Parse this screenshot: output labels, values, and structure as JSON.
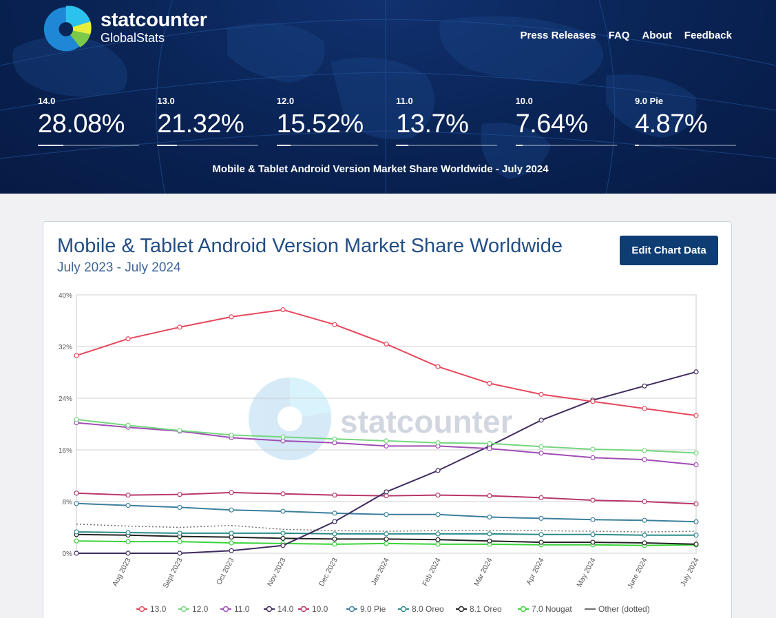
{
  "brand": {
    "name": "statcounter",
    "sub": "GlobalStats"
  },
  "nav": [
    "Press Releases",
    "FAQ",
    "About",
    "Feedback"
  ],
  "stats": [
    {
      "label": "14.0",
      "value": "28.08%",
      "share": 0.2808
    },
    {
      "label": "13.0",
      "value": "21.32%",
      "share": 0.2132
    },
    {
      "label": "12.0",
      "value": "15.52%",
      "share": 0.1552
    },
    {
      "label": "11.0",
      "value": "13.7%",
      "share": 0.137
    },
    {
      "label": "10.0",
      "value": "7.64%",
      "share": 0.0764
    },
    {
      "label": "9.0 Pie",
      "value": "4.87%",
      "share": 0.0487
    }
  ],
  "hero_title": "Mobile & Tablet Android Version Market Share Worldwide - July 2024",
  "card": {
    "title": "Mobile & Tablet Android Version Market Share Worldwide",
    "subtitle": "July 2023 - July 2024",
    "edit_button": "Edit Chart Data"
  },
  "watermark": "statcounter",
  "chart_data": {
    "type": "line",
    "title": "",
    "xlabel": "",
    "ylabel": "",
    "ylim": [
      0,
      40
    ],
    "yticks": [
      "0%",
      "8%",
      "16%",
      "24%",
      "32%",
      "40%"
    ],
    "ytick_values": [
      0,
      8,
      16,
      24,
      32,
      40
    ],
    "x": [
      "July 2023",
      "Aug 2023",
      "Sept 2023",
      "Oct 2023",
      "Nov 2023",
      "Dec 2023",
      "Jan 2024",
      "Feb 2024",
      "Mar 2024",
      "Apr 2024",
      "May 2024",
      "June 2024",
      "July 2024"
    ],
    "xtick_labels": [
      "Aug 2023",
      "Sept 2023",
      "Oct 2023",
      "Nov 2023",
      "Dec 2023",
      "Jan 2024",
      "Feb 2024",
      "Mar 2024",
      "Apr 2024",
      "May 2024",
      "June 2024",
      "July 2024"
    ],
    "grid": true,
    "legend_position": "bottom",
    "series": [
      {
        "name": "13.0",
        "color": "#e6475c",
        "values": [
          30.6,
          33.2,
          35.0,
          36.6,
          37.7,
          35.4,
          32.4,
          28.9,
          26.3,
          24.6,
          23.5,
          22.4,
          21.32
        ]
      },
      {
        "name": "12.0",
        "color": "#74d67f",
        "values": [
          20.7,
          19.8,
          19.0,
          18.3,
          18.0,
          17.7,
          17.4,
          17.1,
          17.0,
          16.5,
          16.1,
          15.9,
          15.52
        ]
      },
      {
        "name": "11.0",
        "color": "#a04cb5",
        "values": [
          20.2,
          19.5,
          18.9,
          17.9,
          17.4,
          17.1,
          16.6,
          16.6,
          16.2,
          15.5,
          14.8,
          14.5,
          13.7
        ]
      },
      {
        "name": "14.0",
        "color": "#3f2b5e",
        "values": [
          0.0,
          0.0,
          0.0,
          0.4,
          1.2,
          4.9,
          9.5,
          12.8,
          16.6,
          20.6,
          23.7,
          25.9,
          28.08
        ]
      },
      {
        "name": "10.0",
        "color": "#b8376a",
        "values": [
          9.3,
          9.0,
          9.1,
          9.4,
          9.2,
          9.0,
          8.9,
          9.0,
          8.9,
          8.6,
          8.2,
          8.0,
          7.64
        ]
      },
      {
        "name": "9.0 Pie",
        "color": "#3b7f9c",
        "values": [
          7.7,
          7.4,
          7.1,
          6.7,
          6.5,
          6.2,
          6.0,
          6.0,
          5.6,
          5.4,
          5.2,
          5.1,
          4.87
        ]
      },
      {
        "name": "8.0 Oreo",
        "color": "#2a8a8a",
        "values": [
          3.3,
          3.2,
          3.1,
          3.1,
          3.1,
          3.0,
          3.0,
          3.0,
          3.0,
          2.9,
          2.9,
          2.8,
          2.8
        ]
      },
      {
        "name": "8.1 Oreo",
        "color": "#222222",
        "values": [
          2.9,
          2.8,
          2.6,
          2.5,
          2.3,
          2.2,
          2.2,
          2.1,
          1.9,
          1.7,
          1.7,
          1.6,
          1.4
        ]
      },
      {
        "name": "7.0 Nougat",
        "color": "#38d438",
        "values": [
          1.9,
          1.8,
          1.8,
          1.6,
          1.5,
          1.4,
          1.5,
          1.4,
          1.4,
          1.3,
          1.3,
          1.2,
          1.3
        ]
      },
      {
        "name": "Other (dotted)",
        "color": "#6e6e6e",
        "dotted": true,
        "values": [
          4.5,
          4.2,
          4.0,
          4.3,
          3.7,
          3.5,
          3.4,
          3.5,
          3.5,
          3.5,
          3.4,
          3.3,
          3.4
        ]
      }
    ]
  }
}
